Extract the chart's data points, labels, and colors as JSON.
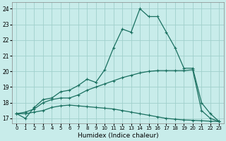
{
  "xlabel": "Humidex (Indice chaleur)",
  "xlim": [
    -0.5,
    23.5
  ],
  "ylim": [
    16.7,
    24.4
  ],
  "yticks": [
    17,
    18,
    19,
    20,
    21,
    22,
    23,
    24
  ],
  "xticks": [
    0,
    1,
    2,
    3,
    4,
    5,
    6,
    7,
    8,
    9,
    10,
    11,
    12,
    13,
    14,
    15,
    16,
    17,
    18,
    19,
    20,
    21,
    22,
    23
  ],
  "bg_color": "#c8ecea",
  "grid_color": "#a0d0cc",
  "line_color": "#1a7060",
  "line1_y": [
    17.3,
    17.0,
    17.7,
    18.2,
    18.3,
    18.7,
    18.8,
    19.1,
    19.5,
    19.3,
    20.1,
    21.5,
    22.7,
    22.5,
    24.0,
    23.5,
    23.5,
    22.5,
    21.5,
    20.2,
    20.2,
    18.0,
    17.3,
    16.8
  ],
  "line2_y": [
    17.3,
    17.3,
    17.4,
    17.5,
    17.7,
    17.8,
    17.85,
    17.8,
    17.75,
    17.7,
    17.65,
    17.6,
    17.5,
    17.4,
    17.3,
    17.2,
    17.1,
    17.0,
    16.95,
    16.9,
    16.88,
    16.85,
    16.82,
    16.8
  ],
  "line3_y": [
    17.3,
    17.4,
    17.6,
    18.0,
    18.2,
    18.3,
    18.3,
    18.5,
    18.8,
    19.0,
    19.2,
    19.4,
    19.6,
    19.75,
    19.9,
    20.0,
    20.05,
    20.05,
    20.05,
    20.05,
    20.1,
    17.5,
    17.0,
    16.8
  ]
}
